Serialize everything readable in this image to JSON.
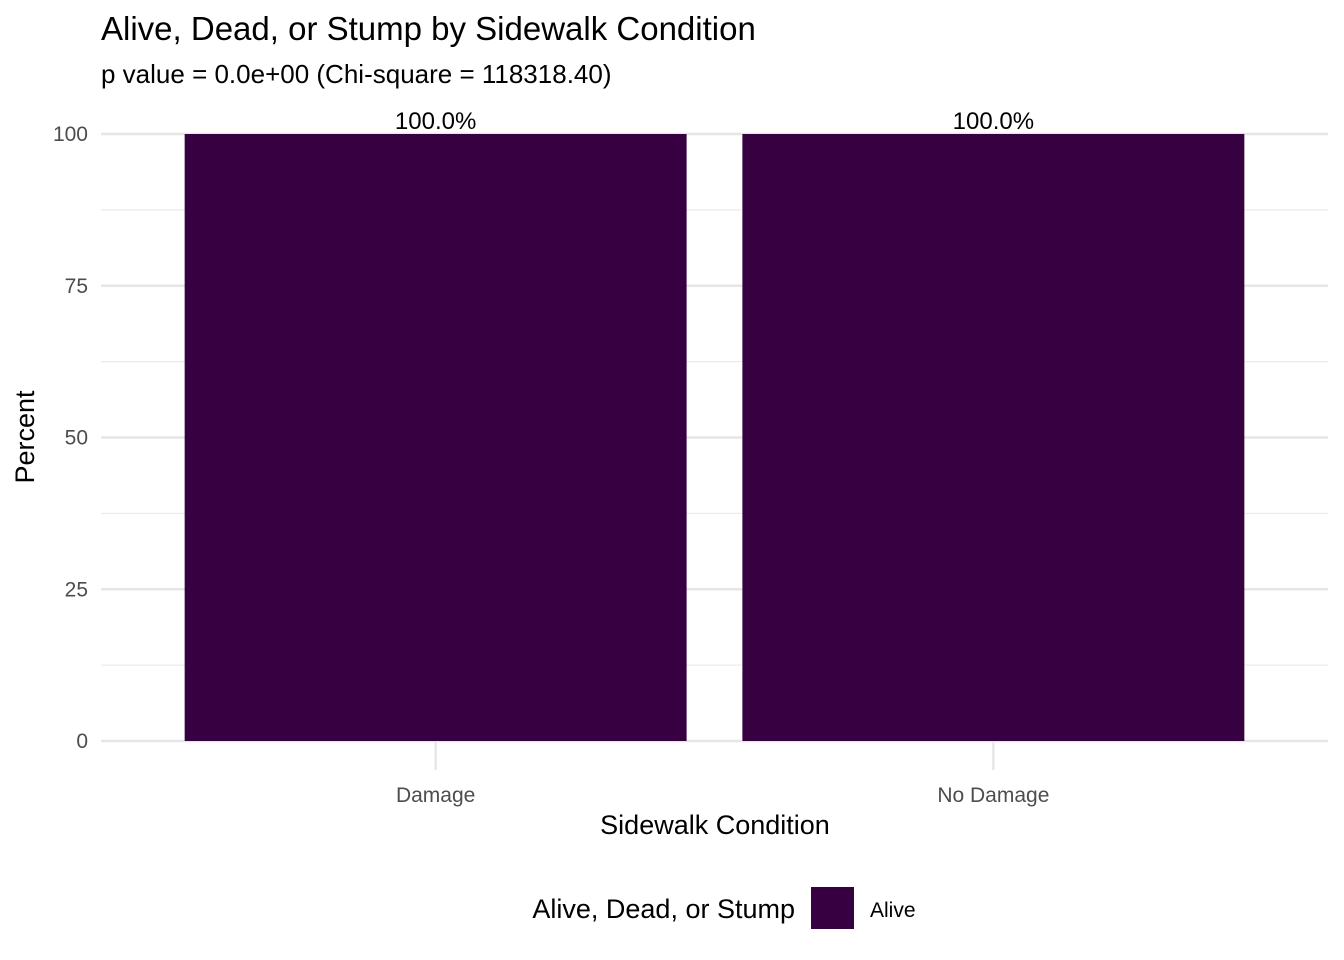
{
  "chart_data": {
    "type": "bar",
    "title": "Alive, Dead, or Stump by Sidewalk Condition",
    "subtitle": "p value = 0.0e+00 (Chi-square = 118318.40)",
    "xlabel": "Sidewalk Condition",
    "ylabel": "Percent",
    "categories": [
      "Damage",
      "No Damage"
    ],
    "series": [
      {
        "name": "Alive",
        "values": [
          100,
          100
        ],
        "labels": [
          "100.0%",
          "100.0%"
        ],
        "color": "#370141"
      }
    ],
    "ylim": [
      0,
      100
    ],
    "yticks": [
      0,
      25,
      50,
      75,
      100
    ],
    "grid": true,
    "legend": {
      "title": "Alive, Dead, or Stump",
      "position": "bottom"
    }
  }
}
